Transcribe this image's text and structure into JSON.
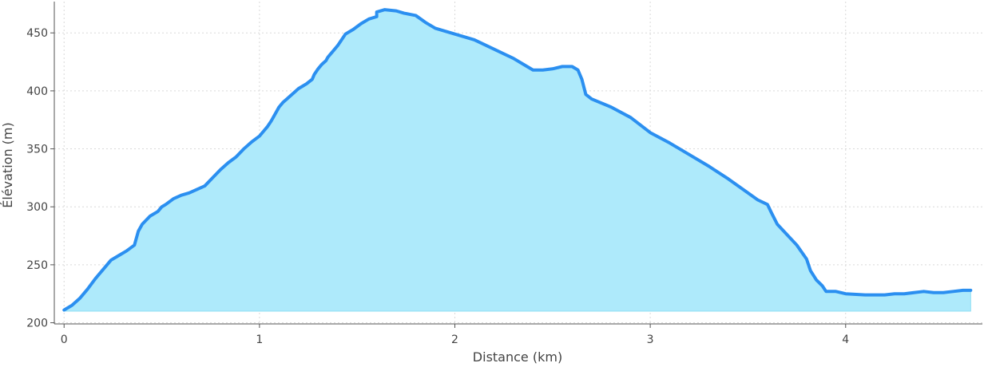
{
  "chart_data": {
    "type": "area",
    "title": "",
    "xlabel": "Distance (km)",
    "ylabel": "Élévation (m)",
    "xlim": [
      -0.05,
      4.7
    ],
    "ylim": [
      199,
      477
    ],
    "xticks": [
      0,
      1,
      2,
      3,
      4
    ],
    "yticks": [
      200,
      250,
      300,
      350,
      400,
      450
    ],
    "baseline": 210,
    "grid": true,
    "series": [
      {
        "line_color": "#2b8ff0",
        "fill_color": "#aeeafb",
        "x": [
          0.0,
          0.04,
          0.08,
          0.12,
          0.16,
          0.2,
          0.24,
          0.28,
          0.32,
          0.36,
          0.38,
          0.4,
          0.44,
          0.48,
          0.5,
          0.52,
          0.56,
          0.6,
          0.64,
          0.68,
          0.72,
          0.76,
          0.8,
          0.84,
          0.88,
          0.92,
          0.96,
          1.0,
          1.02,
          1.04,
          1.06,
          1.08,
          1.1,
          1.12,
          1.14,
          1.16,
          1.18,
          1.2,
          1.24,
          1.27,
          1.28,
          1.3,
          1.32,
          1.34,
          1.35,
          1.36,
          1.38,
          1.4,
          1.42,
          1.44,
          1.48,
          1.52,
          1.56,
          1.6,
          1.6,
          1.64,
          1.7,
          1.74,
          1.8,
          1.85,
          1.9,
          2.0,
          2.1,
          2.2,
          2.3,
          2.35,
          2.4,
          2.45,
          2.5,
          2.55,
          2.6,
          2.63,
          2.65,
          2.67,
          2.7,
          2.8,
          2.9,
          3.0,
          3.1,
          3.15,
          3.2,
          3.3,
          3.4,
          3.5,
          3.55,
          3.6,
          3.62,
          3.65,
          3.7,
          3.75,
          3.8,
          3.82,
          3.85,
          3.88,
          3.9,
          3.95,
          4.0,
          4.1,
          4.17,
          4.2,
          4.25,
          4.3,
          4.35,
          4.4,
          4.45,
          4.5,
          4.55,
          4.6,
          4.64
        ],
        "y": [
          211,
          215,
          221,
          229,
          238,
          246,
          254,
          258,
          262,
          267,
          279,
          285,
          292,
          296,
          300,
          302,
          307,
          310,
          312,
          315,
          318,
          325,
          332,
          338,
          343,
          350,
          356,
          361,
          365,
          369,
          374,
          380,
          386,
          390,
          393,
          396,
          399,
          402,
          406,
          410,
          414,
          419,
          423,
          426,
          429,
          431,
          435,
          439,
          444,
          449,
          453,
          458,
          462,
          464,
          468,
          470,
          469,
          467,
          465,
          459,
          454,
          449,
          444,
          436,
          428,
          423,
          418,
          418,
          419,
          421,
          421,
          418,
          410,
          397,
          393,
          386,
          377,
          364,
          355,
          350,
          345,
          335,
          324,
          312,
          306,
          302,
          295,
          285,
          276,
          267,
          255,
          245,
          237,
          232,
          227,
          227,
          225,
          224,
          224,
          224,
          225,
          225,
          226,
          227,
          226,
          226,
          227,
          228,
          228
        ]
      }
    ]
  }
}
